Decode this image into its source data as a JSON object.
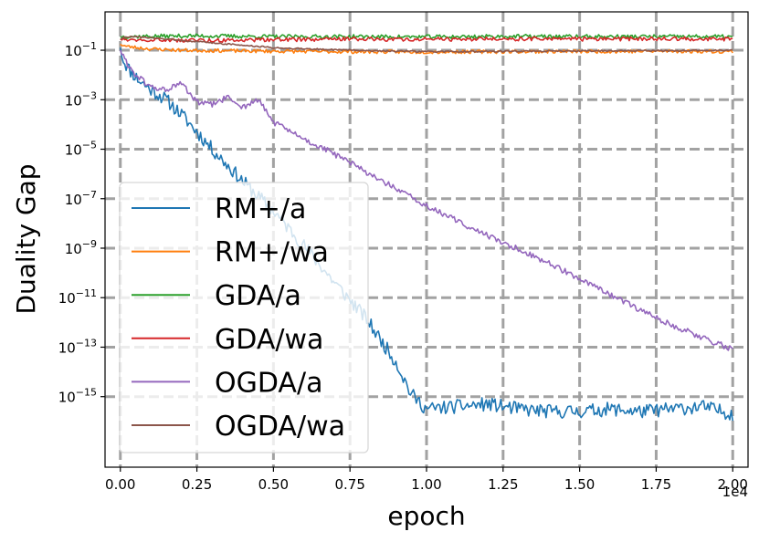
{
  "chart_data": {
    "type": "line",
    "title": "",
    "xlabel": "epoch",
    "ylabel": "Duality Gap",
    "x_offset_label": "1e4",
    "xlim": [
      -0.05,
      2.05
    ],
    "ylim_log10": [
      -17.85,
      0.55
    ],
    "yscale": "log",
    "grid": true,
    "legend_position": "lower-left",
    "x_ticks": [
      {
        "value": 0.0,
        "label": "0.00"
      },
      {
        "value": 0.25,
        "label": "0.25"
      },
      {
        "value": 0.5,
        "label": "0.50"
      },
      {
        "value": 0.75,
        "label": "0.75"
      },
      {
        "value": 1.0,
        "label": "1.00"
      },
      {
        "value": 1.25,
        "label": "1.25"
      },
      {
        "value": 1.5,
        "label": "1.50"
      },
      {
        "value": 1.75,
        "label": "1.75"
      },
      {
        "value": 2.0,
        "label": "2.00"
      }
    ],
    "y_ticks": [
      {
        "exp": -1,
        "base": "10",
        "sup": "−1"
      },
      {
        "exp": -3,
        "base": "10",
        "sup": "−3"
      },
      {
        "exp": -5,
        "base": "10",
        "sup": "−5"
      },
      {
        "exp": -7,
        "base": "10",
        "sup": "−7"
      },
      {
        "exp": -9,
        "base": "10",
        "sup": "−9"
      },
      {
        "exp": -11,
        "base": "10",
        "sup": "−11"
      },
      {
        "exp": -13,
        "base": "10",
        "sup": "−13"
      },
      {
        "exp": -15,
        "base": "10",
        "sup": "−15"
      }
    ],
    "series": [
      {
        "name": "RM+/a",
        "color": "#1f77b4",
        "noise": 0.28,
        "seed": 11,
        "x": [
          0.0,
          0.01,
          0.03,
          0.06,
          0.1,
          0.15,
          0.2,
          0.3,
          0.4,
          0.5,
          0.6,
          0.7,
          0.8,
          0.9,
          0.95,
          1.0,
          1.1,
          1.2,
          1.3,
          1.4,
          1.5,
          1.6,
          1.7,
          1.8,
          1.9,
          2.0
        ],
        "log10": [
          -0.9,
          -1.4,
          -1.8,
          -2.2,
          -2.6,
          -3.0,
          -3.6,
          -5.0,
          -6.3,
          -7.5,
          -8.9,
          -10.4,
          -11.8,
          -13.6,
          -14.9,
          -15.5,
          -15.4,
          -15.3,
          -15.5,
          -15.6,
          -15.6,
          -15.5,
          -15.6,
          -15.5,
          -15.4,
          -15.7
        ]
      },
      {
        "name": "RM+/wa",
        "color": "#ff7f0e",
        "noise": 0.07,
        "seed": 23,
        "x": [
          0.0,
          0.02,
          0.1,
          0.2,
          0.4,
          0.6,
          0.8,
          1.0,
          1.2,
          1.4,
          1.6,
          1.8,
          2.0
        ],
        "log10": [
          -0.75,
          -0.85,
          -0.95,
          -1.0,
          -1.03,
          -1.05,
          -1.06,
          -1.07,
          -1.06,
          -1.05,
          -1.05,
          -1.04,
          -1.05
        ]
      },
      {
        "name": "GDA/a",
        "color": "#2ca02c",
        "noise": 0.08,
        "seed": 37,
        "x": [
          0.0,
          0.25,
          0.5,
          0.75,
          1.0,
          1.25,
          1.5,
          1.75,
          2.0
        ],
        "log10": [
          -0.45,
          -0.42,
          -0.45,
          -0.45,
          -0.46,
          -0.44,
          -0.45,
          -0.45,
          -0.45
        ]
      },
      {
        "name": "GDA/wa",
        "color": "#d62728",
        "noise": 0.08,
        "seed": 49,
        "x": [
          0.0,
          0.25,
          0.5,
          0.75,
          1.0,
          1.25,
          1.5,
          1.75,
          2.0
        ],
        "log10": [
          -0.55,
          -0.6,
          -0.58,
          -0.55,
          -0.56,
          -0.55,
          -0.55,
          -0.54,
          -0.55
        ]
      },
      {
        "name": "OGDA/a",
        "color": "#9467bd",
        "noise": 0.12,
        "seed": 61,
        "x": [
          0.0,
          0.02,
          0.05,
          0.1,
          0.15,
          0.2,
          0.25,
          0.3,
          0.35,
          0.4,
          0.45,
          0.5,
          0.6,
          0.7,
          0.8,
          0.9,
          1.0,
          1.2,
          1.4,
          1.6,
          1.8,
          2.0
        ],
        "log10": [
          -1.0,
          -1.5,
          -2.0,
          -2.5,
          -2.6,
          -2.35,
          -3.1,
          -3.2,
          -2.9,
          -3.3,
          -3.0,
          -3.9,
          -4.6,
          -5.2,
          -5.9,
          -6.6,
          -7.3,
          -8.5,
          -9.6,
          -10.9,
          -12.1,
          -13.1
        ]
      },
      {
        "name": "OGDA/wa",
        "color": "#8c564b",
        "noise": 0.03,
        "seed": 73,
        "x": [
          0.0,
          0.02,
          0.1,
          0.2,
          0.3,
          0.4,
          0.5,
          0.7,
          0.9,
          1.0,
          1.2,
          1.5,
          1.8,
          2.0
        ],
        "log10": [
          -0.55,
          -0.45,
          -0.5,
          -0.6,
          -0.7,
          -0.8,
          -0.9,
          -0.98,
          -1.04,
          -1.06,
          -1.05,
          -1.03,
          -1.02,
          -1.0
        ]
      }
    ]
  }
}
